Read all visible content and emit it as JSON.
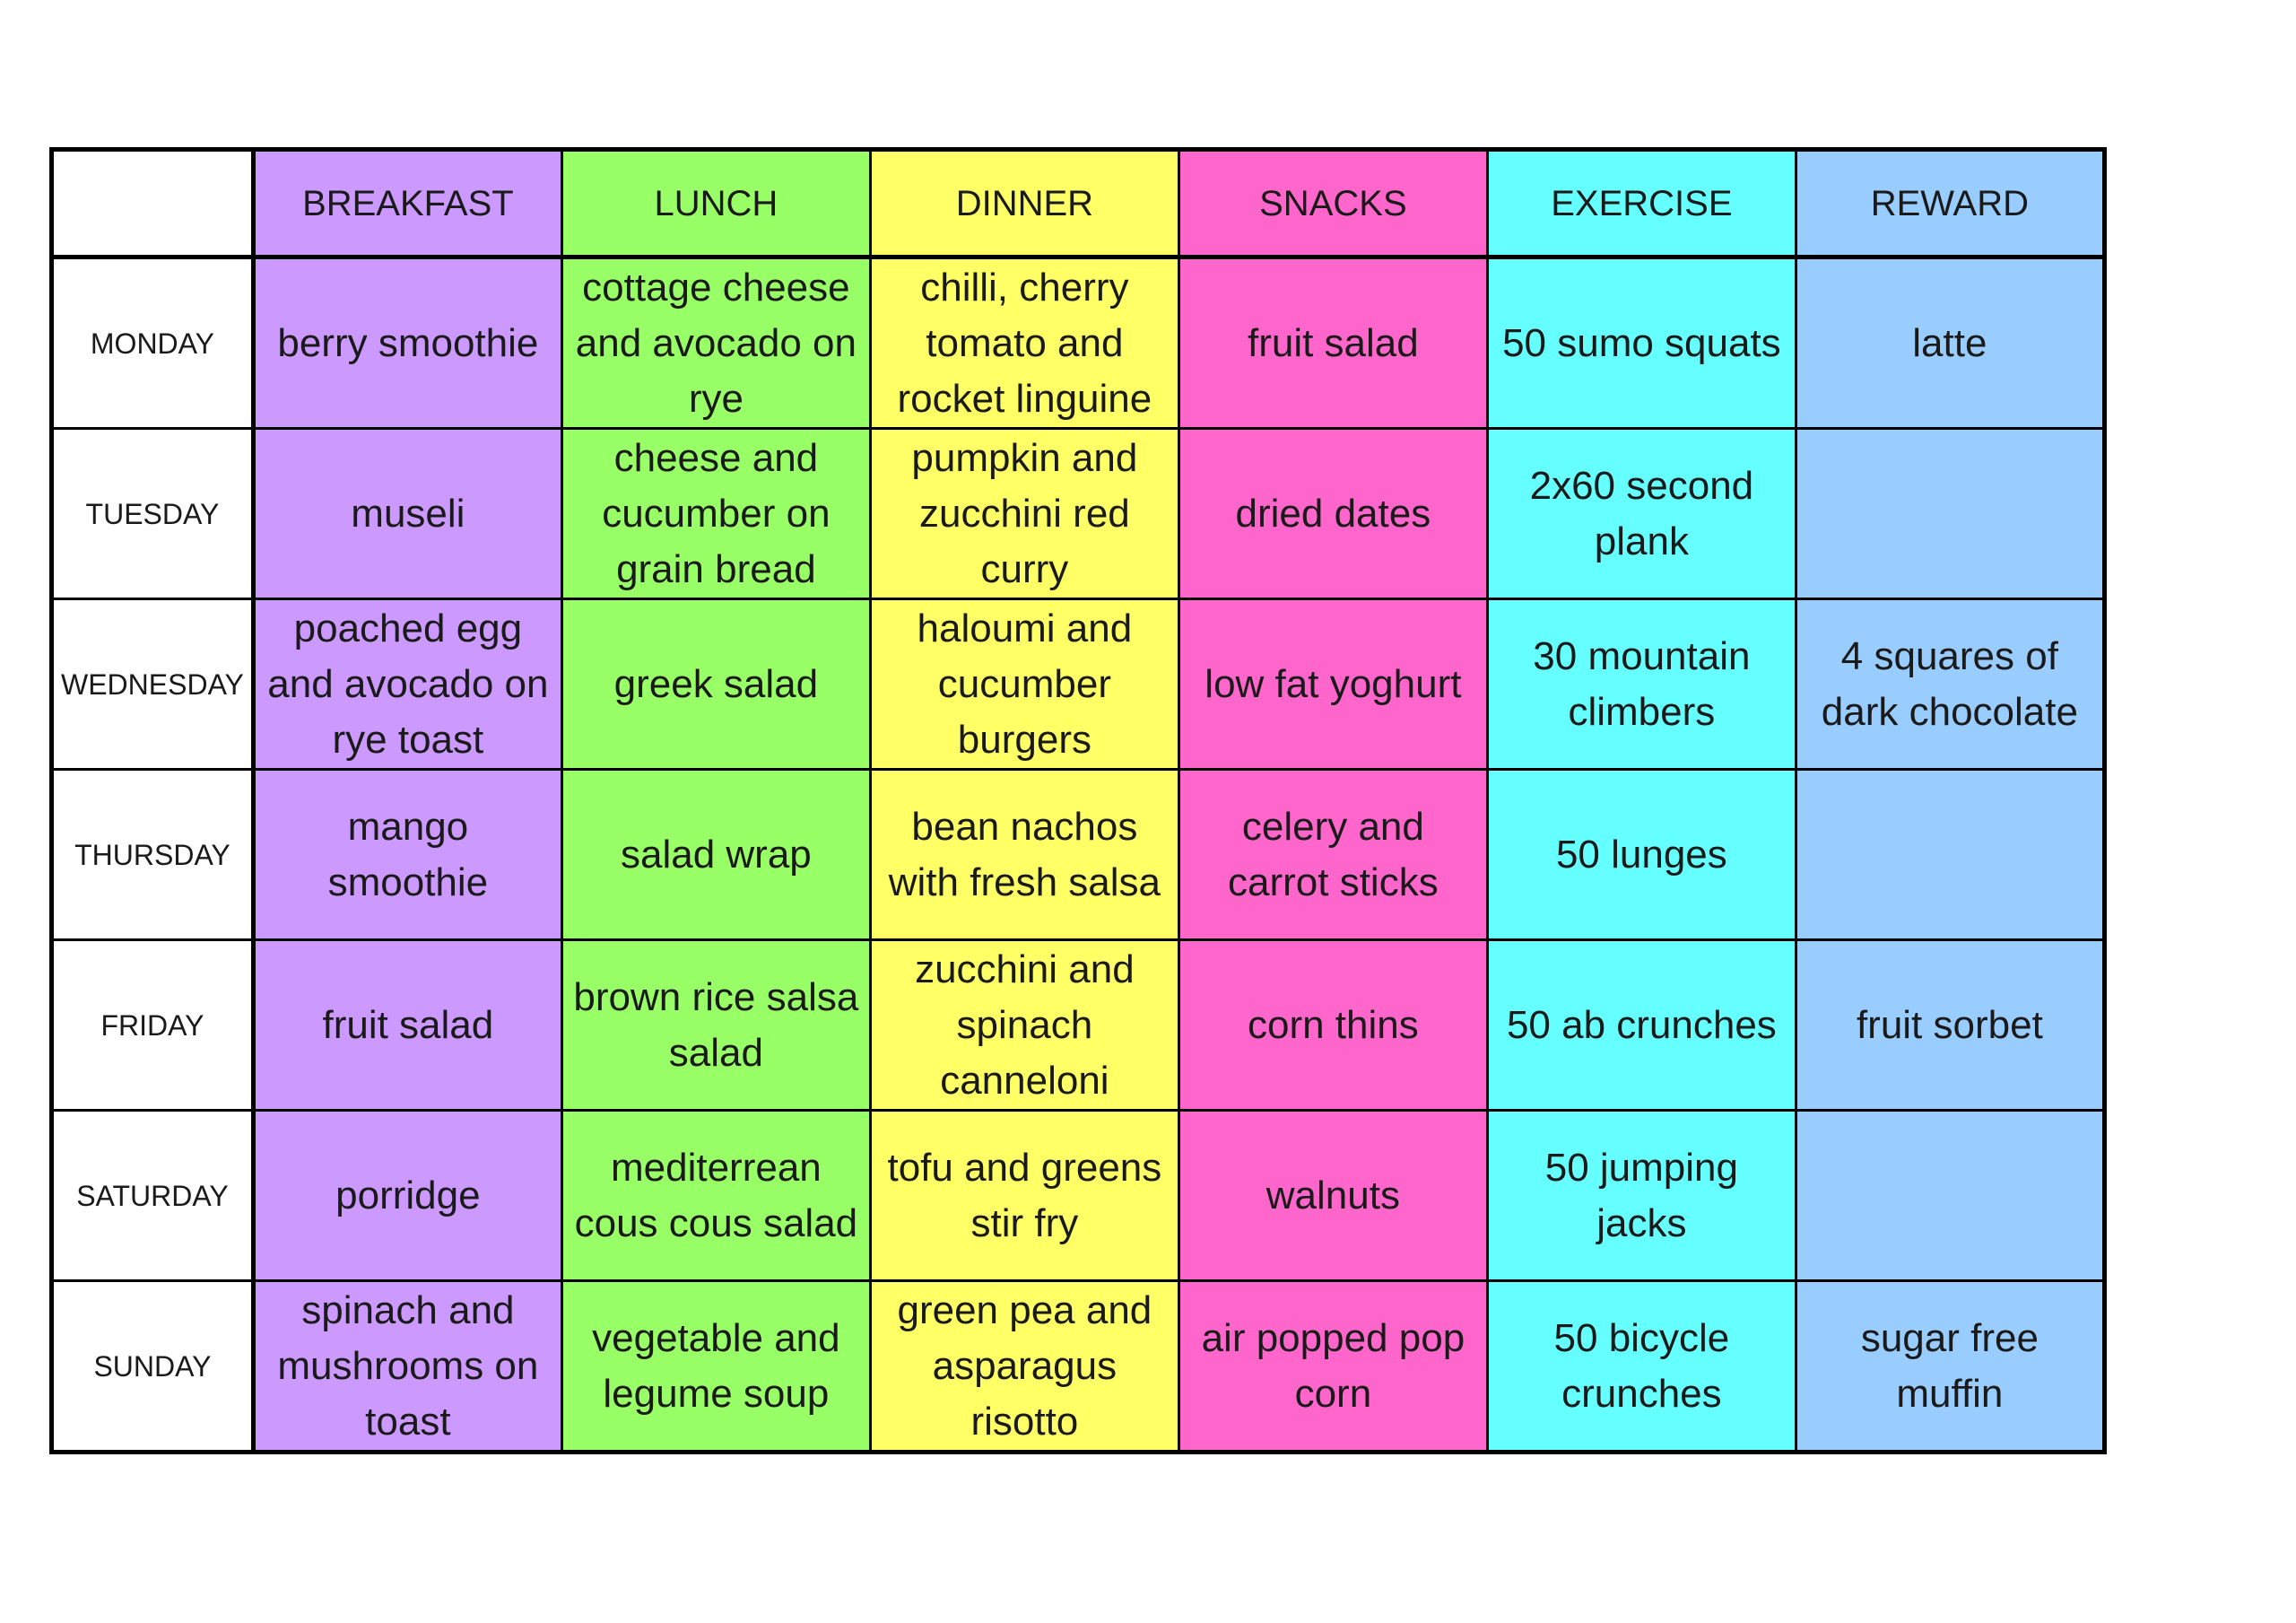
{
  "colors": {
    "day": "#ffffff",
    "breakfast": "#cc99ff",
    "lunch": "#99ff66",
    "dinner": "#ffff66",
    "snacks": "#ff66cc",
    "exercise": "#66ffff",
    "reward": "#99ccff"
  },
  "header": {
    "blank": "",
    "breakfast": "BREAKFAST",
    "lunch": "LUNCH",
    "dinner": "DINNER",
    "snacks": "SNACKS",
    "exercise": "EXERCISE",
    "reward": "REWARD"
  },
  "days": [
    {
      "day": "MONDAY",
      "breakfast": "berry smoothie",
      "lunch": "cottage cheese and avocado on rye",
      "dinner": "chilli, cherry tomato and rocket linguine",
      "snacks": "fruit salad",
      "exercise": "50 sumo squats",
      "reward": "latte"
    },
    {
      "day": "TUESDAY",
      "breakfast": "museli",
      "lunch": "cheese and cucumber on grain bread",
      "dinner": "pumpkin and zucchini red curry",
      "snacks": "dried dates",
      "exercise": "2x60 second plank",
      "reward": ""
    },
    {
      "day": "WEDNESDAY",
      "breakfast": "poached egg and avocado on rye toast",
      "lunch": "greek salad",
      "dinner": "haloumi and cucumber burgers",
      "snacks": "low fat yoghurt",
      "exercise": "30 mountain climbers",
      "reward": "4 squares of dark chocolate"
    },
    {
      "day": "THURSDAY",
      "breakfast": "mango smoothie",
      "lunch": "salad wrap",
      "dinner": "bean nachos with fresh salsa",
      "snacks": "celery and carrot sticks",
      "exercise": "50 lunges",
      "reward": ""
    },
    {
      "day": "FRIDAY",
      "breakfast": "fruit salad",
      "lunch": "brown rice salsa salad",
      "dinner": "zucchini and spinach canneloni",
      "snacks": "corn thins",
      "exercise": "50 ab crunches",
      "reward": "fruit sorbet"
    },
    {
      "day": "SATURDAY",
      "breakfast": "porridge",
      "lunch": "mediterrean cous cous salad",
      "dinner": "tofu and greens stir fry",
      "snacks": "walnuts",
      "exercise": "50 jumping jacks",
      "reward": ""
    },
    {
      "day": "SUNDAY",
      "breakfast": "spinach and mushrooms on toast",
      "lunch": "vegetable and legume soup",
      "dinner": "green pea and asparagus risotto",
      "snacks": "air popped pop corn",
      "exercise": "50 bicycle crunches",
      "reward": "sugar free muffin"
    }
  ]
}
